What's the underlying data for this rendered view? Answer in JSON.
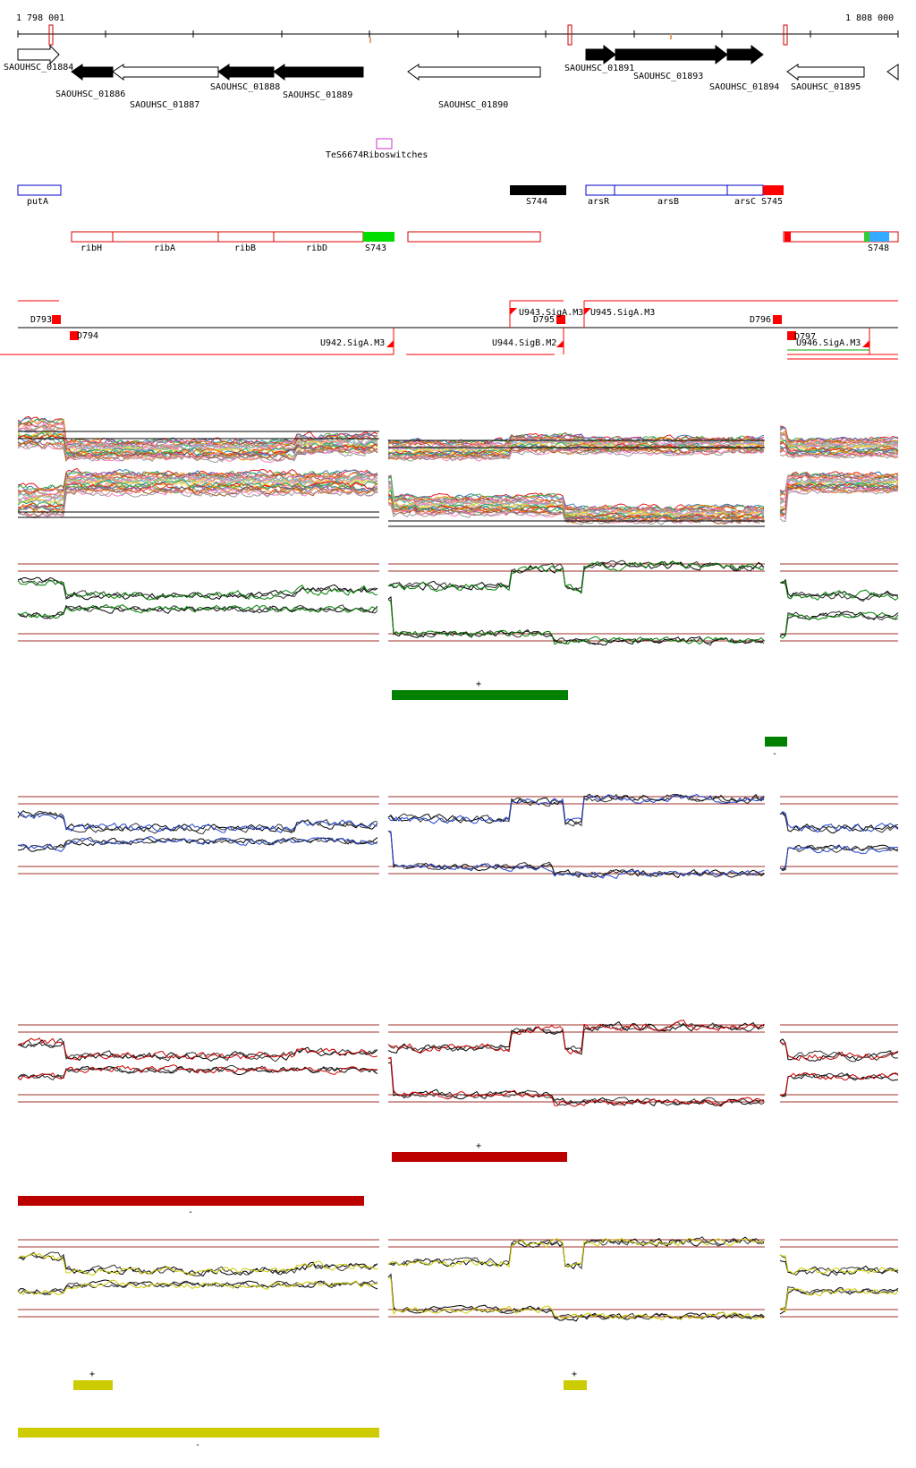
{
  "ruler": {
    "start_label": "1 798 001",
    "end_label": "1 808 000"
  },
  "genes": [
    {
      "label": "SAOUHSC_01884",
      "strand": "+",
      "fill": "white"
    },
    {
      "label": "SAOUHSC_01886",
      "strand": "-",
      "fill": "black"
    },
    {
      "label": "SAOUHSC_01887",
      "strand": "-",
      "fill": "white"
    },
    {
      "label": "SAOUHSC_01888",
      "strand": "-",
      "fill": "black"
    },
    {
      "label": "SAOUHSC_01889",
      "strand": "-",
      "fill": "black"
    },
    {
      "label": "SAOUHSC_01890",
      "strand": "-",
      "fill": "white"
    },
    {
      "label": "SAOUHSC_01891",
      "strand": "+",
      "fill": "black"
    },
    {
      "label": "SAOUHSC_01893",
      "strand": "+",
      "fill": "black"
    },
    {
      "label": "SAOUHSC_01894",
      "strand": "+",
      "fill": "black"
    },
    {
      "label": "SAOUHSC_01895",
      "strand": "-",
      "fill": "white"
    }
  ],
  "riboswitch": {
    "label": "TeS6674Riboswitches",
    "color": "#cc33cc"
  },
  "blue_operons": [
    {
      "label": "putA"
    },
    {
      "label": "arsR"
    },
    {
      "label": "arsB"
    },
    {
      "label": "arsC"
    }
  ],
  "segments_top": [
    {
      "label": "S744",
      "color": "#000000"
    },
    {
      "label": "S745",
      "color": "#ff0000"
    }
  ],
  "red_operons": [
    {
      "label": "ribH"
    },
    {
      "label": "ribA"
    },
    {
      "label": "ribB"
    },
    {
      "label": "ribD"
    }
  ],
  "segments_mid": [
    {
      "label": "S743",
      "color": "#00dd00"
    },
    {
      "label": "S748",
      "color": "#33aaff"
    }
  ],
  "breakpoints": [
    {
      "label": "D793"
    },
    {
      "label": "D794"
    },
    {
      "label": "D795"
    },
    {
      "label": "D796"
    },
    {
      "label": "D797"
    }
  ],
  "promoters": [
    {
      "label": "U942.SigA.M3"
    },
    {
      "label": "U943.SigA.M3"
    },
    {
      "label": "U944.SigB.M2"
    },
    {
      "label": "U945.SigA.M3"
    },
    {
      "label": "U946.SigA.M3"
    }
  ],
  "condition_tracks": [
    {
      "color": "#008000",
      "plus_label": "+",
      "minus_label": "-"
    },
    {
      "color": "#2244cc"
    },
    {
      "color": "#cc0000",
      "plus_label": "+",
      "minus_label": "-"
    },
    {
      "color": "#cccc00",
      "plus_label": "+",
      "minus_label": "-"
    }
  ]
}
